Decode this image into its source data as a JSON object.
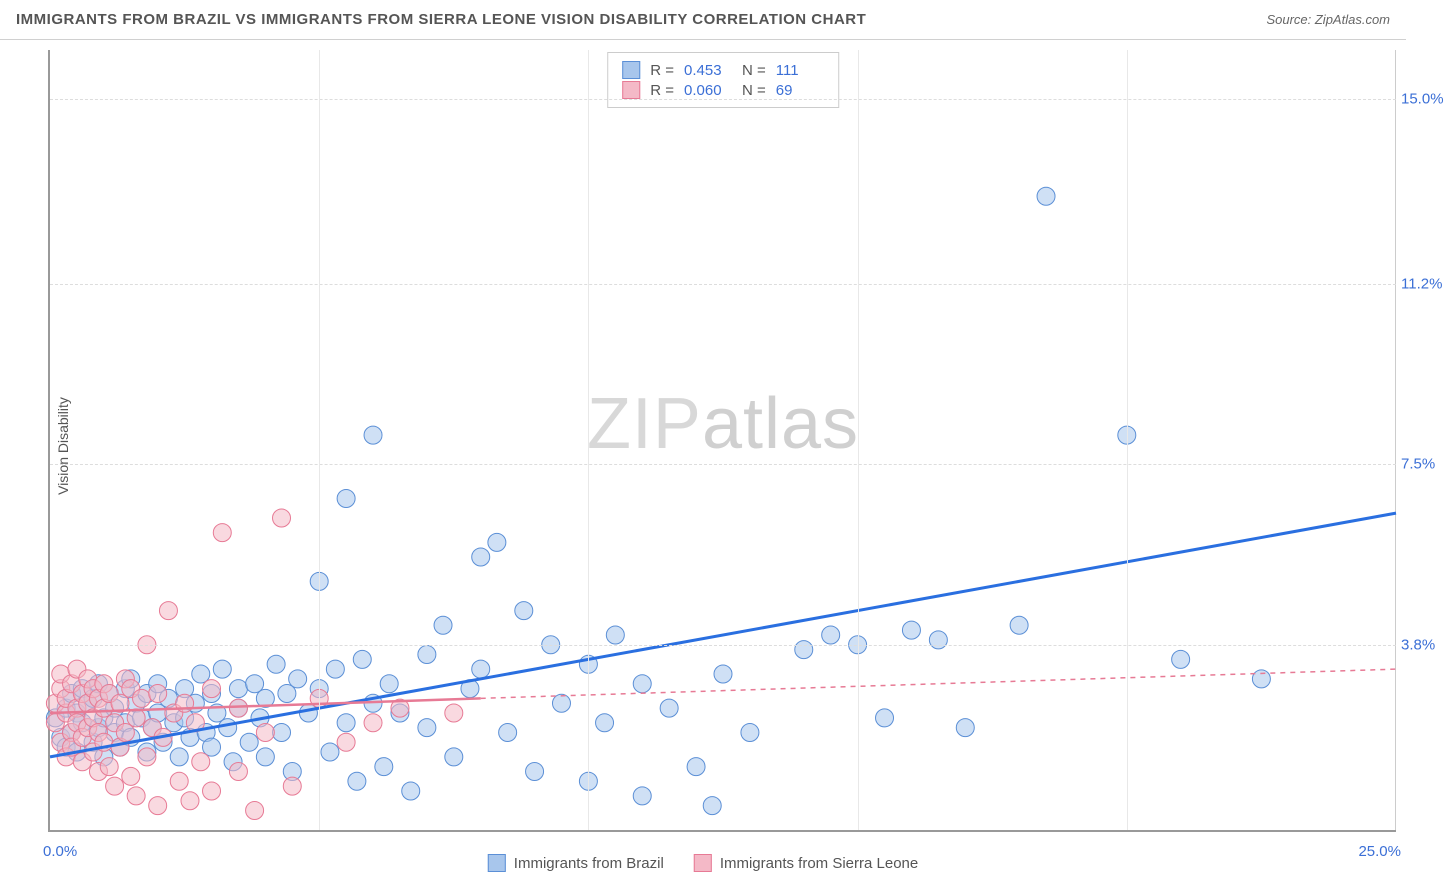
{
  "header": {
    "title": "IMMIGRANTS FROM BRAZIL VS IMMIGRANTS FROM SIERRA LEONE VISION DISABILITY CORRELATION CHART",
    "source": "Source: ZipAtlas.com"
  },
  "ylabel": "Vision Disability",
  "watermark_a": "ZIP",
  "watermark_b": "atlas",
  "chart": {
    "type": "scatter",
    "xlim": [
      0,
      25
    ],
    "ylim": [
      0,
      16
    ],
    "x_origin_label": "0.0%",
    "x_max_label": "25.0%",
    "y_ticks": [
      {
        "v": 3.8,
        "label": "3.8%"
      },
      {
        "v": 7.5,
        "label": "7.5%"
      },
      {
        "v": 11.2,
        "label": "11.2%"
      },
      {
        "v": 15.0,
        "label": "15.0%"
      }
    ],
    "x_gridlines": [
      5,
      10,
      15,
      20
    ],
    "background_color": "#ffffff",
    "grid_color": "#dddddd",
    "marker_radius": 9,
    "marker_opacity": 0.55,
    "series": [
      {
        "name": "Immigrants from Brazil",
        "fill": "#a8c6ec",
        "stroke": "#5b8fd6",
        "trend": {
          "x1": 0,
          "y1": 1.5,
          "x2": 25,
          "y2": 6.5,
          "color": "#2a6fe0",
          "width": 3,
          "dash": "none",
          "extrap_dash": "none"
        },
        "stats": {
          "R": "0.453",
          "N": "111"
        },
        "points": [
          [
            0.1,
            2.3
          ],
          [
            0.2,
            1.9
          ],
          [
            0.3,
            2.5
          ],
          [
            0.3,
            1.7
          ],
          [
            0.4,
            2.8
          ],
          [
            0.4,
            2.0
          ],
          [
            0.5,
            2.4
          ],
          [
            0.5,
            1.6
          ],
          [
            0.6,
            2.9
          ],
          [
            0.6,
            2.2
          ],
          [
            0.7,
            2.6
          ],
          [
            0.8,
            1.8
          ],
          [
            0.8,
            2.7
          ],
          [
            0.9,
            2.1
          ],
          [
            0.9,
            3.0
          ],
          [
            1.0,
            2.3
          ],
          [
            1.0,
            1.5
          ],
          [
            1.1,
            2.8
          ],
          [
            1.2,
            2.0
          ],
          [
            1.2,
            2.5
          ],
          [
            1.3,
            1.7
          ],
          [
            1.4,
            2.9
          ],
          [
            1.4,
            2.2
          ],
          [
            1.5,
            3.1
          ],
          [
            1.5,
            1.9
          ],
          [
            1.6,
            2.6
          ],
          [
            1.7,
            2.3
          ],
          [
            1.8,
            1.6
          ],
          [
            1.8,
            2.8
          ],
          [
            1.9,
            2.1
          ],
          [
            2.0,
            3.0
          ],
          [
            2.0,
            2.4
          ],
          [
            2.1,
            1.8
          ],
          [
            2.2,
            2.7
          ],
          [
            2.3,
            2.2
          ],
          [
            2.4,
            1.5
          ],
          [
            2.5,
            2.9
          ],
          [
            2.5,
            2.3
          ],
          [
            2.6,
            1.9
          ],
          [
            2.7,
            2.6
          ],
          [
            2.8,
            3.2
          ],
          [
            2.9,
            2.0
          ],
          [
            3.0,
            2.8
          ],
          [
            3.0,
            1.7
          ],
          [
            3.1,
            2.4
          ],
          [
            3.2,
            3.3
          ],
          [
            3.3,
            2.1
          ],
          [
            3.4,
            1.4
          ],
          [
            3.5,
            2.9
          ],
          [
            3.5,
            2.5
          ],
          [
            3.7,
            1.8
          ],
          [
            3.8,
            3.0
          ],
          [
            3.9,
            2.3
          ],
          [
            4.0,
            2.7
          ],
          [
            4.0,
            1.5
          ],
          [
            4.2,
            3.4
          ],
          [
            4.3,
            2.0
          ],
          [
            4.4,
            2.8
          ],
          [
            4.5,
            1.2
          ],
          [
            4.6,
            3.1
          ],
          [
            4.8,
            2.4
          ],
          [
            5.0,
            5.1
          ],
          [
            5.0,
            2.9
          ],
          [
            5.2,
            1.6
          ],
          [
            5.3,
            3.3
          ],
          [
            5.5,
            2.2
          ],
          [
            5.5,
            6.8
          ],
          [
            5.7,
            1.0
          ],
          [
            5.8,
            3.5
          ],
          [
            6.0,
            2.6
          ],
          [
            6.0,
            8.1
          ],
          [
            6.2,
            1.3
          ],
          [
            6.3,
            3.0
          ],
          [
            6.5,
            2.4
          ],
          [
            6.7,
            0.8
          ],
          [
            7.0,
            3.6
          ],
          [
            7.0,
            2.1
          ],
          [
            7.3,
            4.2
          ],
          [
            7.5,
            1.5
          ],
          [
            7.8,
            2.9
          ],
          [
            8.0,
            5.6
          ],
          [
            8.0,
            3.3
          ],
          [
            8.3,
            5.9
          ],
          [
            8.5,
            2.0
          ],
          [
            8.8,
            4.5
          ],
          [
            9.0,
            1.2
          ],
          [
            9.3,
            3.8
          ],
          [
            9.5,
            2.6
          ],
          [
            10.0,
            3.4
          ],
          [
            10.0,
            1.0
          ],
          [
            10.3,
            2.2
          ],
          [
            10.5,
            4.0
          ],
          [
            11.0,
            3.0
          ],
          [
            11.0,
            0.7
          ],
          [
            11.5,
            2.5
          ],
          [
            12.0,
            1.3
          ],
          [
            12.3,
            0.5
          ],
          [
            12.5,
            3.2
          ],
          [
            13.0,
            2.0
          ],
          [
            14.0,
            3.7
          ],
          [
            14.5,
            4.0
          ],
          [
            15.0,
            3.8
          ],
          [
            15.5,
            2.3
          ],
          [
            16.0,
            4.1
          ],
          [
            16.5,
            3.9
          ],
          [
            17.0,
            2.1
          ],
          [
            18.0,
            4.2
          ],
          [
            18.5,
            13.0
          ],
          [
            20.0,
            8.1
          ],
          [
            21.0,
            3.5
          ],
          [
            22.5,
            3.1
          ]
        ]
      },
      {
        "name": "Immigrants from Sierra Leone",
        "fill": "#f4b9c7",
        "stroke": "#e77a95",
        "trend": {
          "x1": 0,
          "y1": 2.4,
          "x2": 8,
          "y2": 2.7,
          "color": "#e77a95",
          "width": 2.5,
          "dash": "none",
          "extrap_x2": 25,
          "extrap_y2": 3.3,
          "extrap_dash": "5,5"
        },
        "stats": {
          "R": "0.060",
          "N": "69"
        },
        "points": [
          [
            0.1,
            2.6
          ],
          [
            0.1,
            2.2
          ],
          [
            0.2,
            2.9
          ],
          [
            0.2,
            1.8
          ],
          [
            0.2,
            3.2
          ],
          [
            0.3,
            2.4
          ],
          [
            0.3,
            1.5
          ],
          [
            0.3,
            2.7
          ],
          [
            0.4,
            2.0
          ],
          [
            0.4,
            3.0
          ],
          [
            0.4,
            1.7
          ],
          [
            0.5,
            2.5
          ],
          [
            0.5,
            2.2
          ],
          [
            0.5,
            3.3
          ],
          [
            0.6,
            1.9
          ],
          [
            0.6,
            2.8
          ],
          [
            0.6,
            1.4
          ],
          [
            0.7,
            2.6
          ],
          [
            0.7,
            2.1
          ],
          [
            0.7,
            3.1
          ],
          [
            0.8,
            1.6
          ],
          [
            0.8,
            2.9
          ],
          [
            0.8,
            2.3
          ],
          [
            0.9,
            1.2
          ],
          [
            0.9,
            2.7
          ],
          [
            0.9,
            2.0
          ],
          [
            1.0,
            3.0
          ],
          [
            1.0,
            1.8
          ],
          [
            1.0,
            2.5
          ],
          [
            1.1,
            1.3
          ],
          [
            1.1,
            2.8
          ],
          [
            1.2,
            2.2
          ],
          [
            1.2,
            0.9
          ],
          [
            1.3,
            2.6
          ],
          [
            1.3,
            1.7
          ],
          [
            1.4,
            3.1
          ],
          [
            1.4,
            2.0
          ],
          [
            1.5,
            1.1
          ],
          [
            1.5,
            2.9
          ],
          [
            1.6,
            2.3
          ],
          [
            1.6,
            0.7
          ],
          [
            1.7,
            2.7
          ],
          [
            1.8,
            1.5
          ],
          [
            1.8,
            3.8
          ],
          [
            1.9,
            2.1
          ],
          [
            2.0,
            0.5
          ],
          [
            2.0,
            2.8
          ],
          [
            2.1,
            1.9
          ],
          [
            2.2,
            4.5
          ],
          [
            2.3,
            2.4
          ],
          [
            2.4,
            1.0
          ],
          [
            2.5,
            2.6
          ],
          [
            2.6,
            0.6
          ],
          [
            2.7,
            2.2
          ],
          [
            2.8,
            1.4
          ],
          [
            3.0,
            2.9
          ],
          [
            3.0,
            0.8
          ],
          [
            3.2,
            6.1
          ],
          [
            3.5,
            2.5
          ],
          [
            3.5,
            1.2
          ],
          [
            3.8,
            0.4
          ],
          [
            4.0,
            2.0
          ],
          [
            4.3,
            6.4
          ],
          [
            4.5,
            0.9
          ],
          [
            5.0,
            2.7
          ],
          [
            5.5,
            1.8
          ],
          [
            6.0,
            2.2
          ],
          [
            6.5,
            2.5
          ],
          [
            7.5,
            2.4
          ]
        ]
      }
    ]
  },
  "legend_bottom": [
    {
      "swatch_fill": "#a8c6ec",
      "swatch_stroke": "#5b8fd6",
      "label": "Immigrants from Brazil"
    },
    {
      "swatch_fill": "#f4b9c7",
      "swatch_stroke": "#e77a95",
      "label": "Immigrants from Sierra Leone"
    }
  ]
}
